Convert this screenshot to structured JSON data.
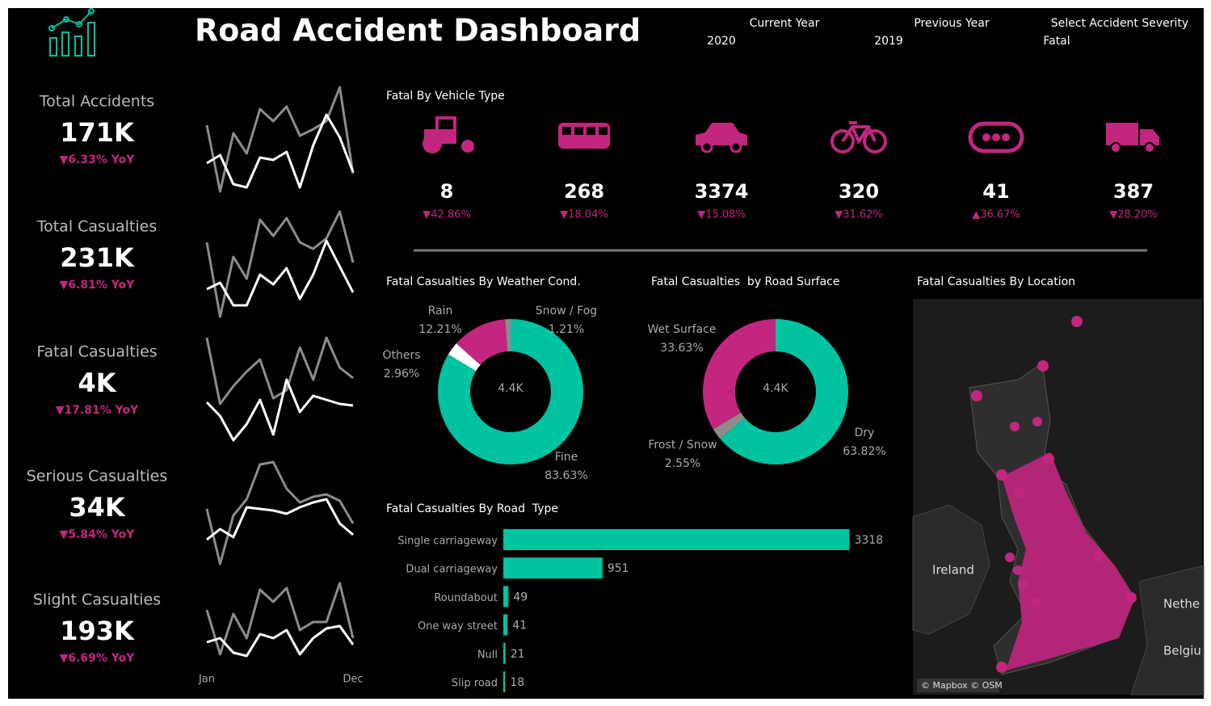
{
  "header": {
    "title": "Road Accident Dashboard",
    "filters": [
      {
        "label": "Current Year",
        "value": "2020"
      },
      {
        "label": "Previous Year",
        "value": "2019"
      },
      {
        "label": "Select Accident Severity",
        "value": "Fatal"
      }
    ]
  },
  "kpis": [
    {
      "label": "Total Accidents",
      "value": "171K",
      "change": "▼6.33% YoY"
    },
    {
      "label": "Total Casualties",
      "value": "231K",
      "change": "▼6.81% YoY"
    },
    {
      "label": "Fatal Casualties",
      "value": "4K",
      "change": "▼17.81% YoY"
    },
    {
      "label": "Serious Casualties",
      "value": "34K",
      "change": "▼5.84% YoY"
    },
    {
      "label": "Slight Casualties",
      "value": "193K",
      "change": "▼6.69% YoY"
    }
  ],
  "chart_data": [
    {
      "type": "line",
      "ylim": [
        0,
        140
      ],
      "series": [
        {
          "color": "#8c8c8c",
          "values": [
            85,
            3,
            75,
            50,
            105,
            90,
            108,
            72,
            80,
            90,
            132,
            25
          ]
        },
        {
          "color": "#ffffff",
          "values": [
            38,
            48,
            12,
            8,
            45,
            42,
            52,
            8,
            60,
            98,
            70,
            27
          ]
        }
      ]
    },
    {
      "type": "line",
      "ylim": [
        0,
        140
      ],
      "series": [
        {
          "color": "#8c8c8c",
          "values": [
            95,
            3,
            77,
            50,
            123,
            103,
            125,
            95,
            87,
            100,
            133,
            70
          ]
        },
        {
          "color": "#ffffff",
          "values": [
            37,
            45,
            17,
            17,
            55,
            43,
            63,
            25,
            55,
            97,
            65,
            33
          ]
        }
      ]
    },
    {
      "type": "line",
      "ylim": [
        0,
        140
      ],
      "series": [
        {
          "color": "#8c8c8c",
          "values": [
            132,
            50,
            72,
            90,
            105,
            57,
            67,
            120,
            80,
            132,
            95,
            82
          ]
        },
        {
          "color": "#ffffff",
          "values": [
            52,
            35,
            5,
            25,
            55,
            12,
            80,
            40,
            60,
            55,
            50,
            48
          ]
        }
      ]
    },
    {
      "type": "line",
      "ylim": [
        0,
        140
      ],
      "series": [
        {
          "color": "#8c8c8c",
          "values": [
            75,
            7,
            67,
            87,
            130,
            133,
            100,
            83,
            90,
            93,
            85,
            57
          ]
        },
        {
          "color": "#ffffff",
          "values": [
            37,
            50,
            40,
            77,
            75,
            73,
            69,
            77,
            83,
            87,
            57,
            43
          ]
        }
      ]
    },
    {
      "type": "line",
      "ylim": [
        0,
        140
      ],
      "categories": [
        "Jan",
        null,
        null,
        null,
        null,
        null,
        null,
        null,
        null,
        null,
        null,
        "Dec"
      ],
      "series": [
        {
          "color": "#8c8c8c",
          "values": [
            105,
            50,
            100,
            70,
            130,
            115,
            132,
            80,
            90,
            90,
            138,
            70
          ]
        },
        {
          "color": "#ffffff",
          "values": [
            65,
            70,
            52,
            48,
            75,
            70,
            80,
            50,
            70,
            82,
            85,
            62
          ]
        }
      ]
    },
    {
      "type": "icons",
      "title": "Fatal By Vehicle Type",
      "color": "#c2267f",
      "values": [
        8,
        268,
        3374,
        320,
        41,
        387
      ],
      "changes": [
        "▼42.86%",
        "▼18.04%",
        "▼15.08%",
        "▼31.62%",
        "▲36.67%",
        "▼28.20%"
      ]
    },
    {
      "type": "pie",
      "title": "Fatal Casualties By Weather Cond.",
      "center_label": "4.4K",
      "categories": [
        "Fine",
        "Others",
        "Rain",
        "Snow / Fog"
      ],
      "values": [
        83.63,
        2.96,
        12.21,
        1.21
      ],
      "value_labels": [
        "83.63%",
        "2.96%",
        "12.21%",
        "1.21%"
      ],
      "colors": [
        "#00c3a0",
        "#ffffff",
        "#c2267f",
        "#8c8c8c"
      ]
    },
    {
      "type": "pie",
      "title": "Fatal Casualties  by Road Surface",
      "center_label": "4.4K",
      "categories": [
        "Dry",
        "Frost / Snow",
        "Wet Surface"
      ],
      "values": [
        63.82,
        2.55,
        33.63
      ],
      "value_labels": [
        "63.82%",
        "2.55%",
        "33.63%"
      ],
      "colors": [
        "#00c3a0",
        "#8c8c8c",
        "#c2267f"
      ]
    },
    {
      "type": "hbar",
      "title": "Fatal Casualties By Road  Type",
      "categories": [
        "Single carriageway",
        "Dual carriageway",
        "Roundabout",
        "One way street",
        "Null",
        "Slip road"
      ],
      "values": [
        3318,
        951,
        49,
        41,
        21,
        18
      ],
      "color": "#00c3a0",
      "xlim": [
        0,
        3500
      ]
    },
    {
      "type": "map",
      "title": "Fatal Casualties By Location",
      "labels": [
        "Ireland",
        "Nethe",
        "Belgiu"
      ],
      "attribution": "© Mapbox © OSM"
    }
  ]
}
